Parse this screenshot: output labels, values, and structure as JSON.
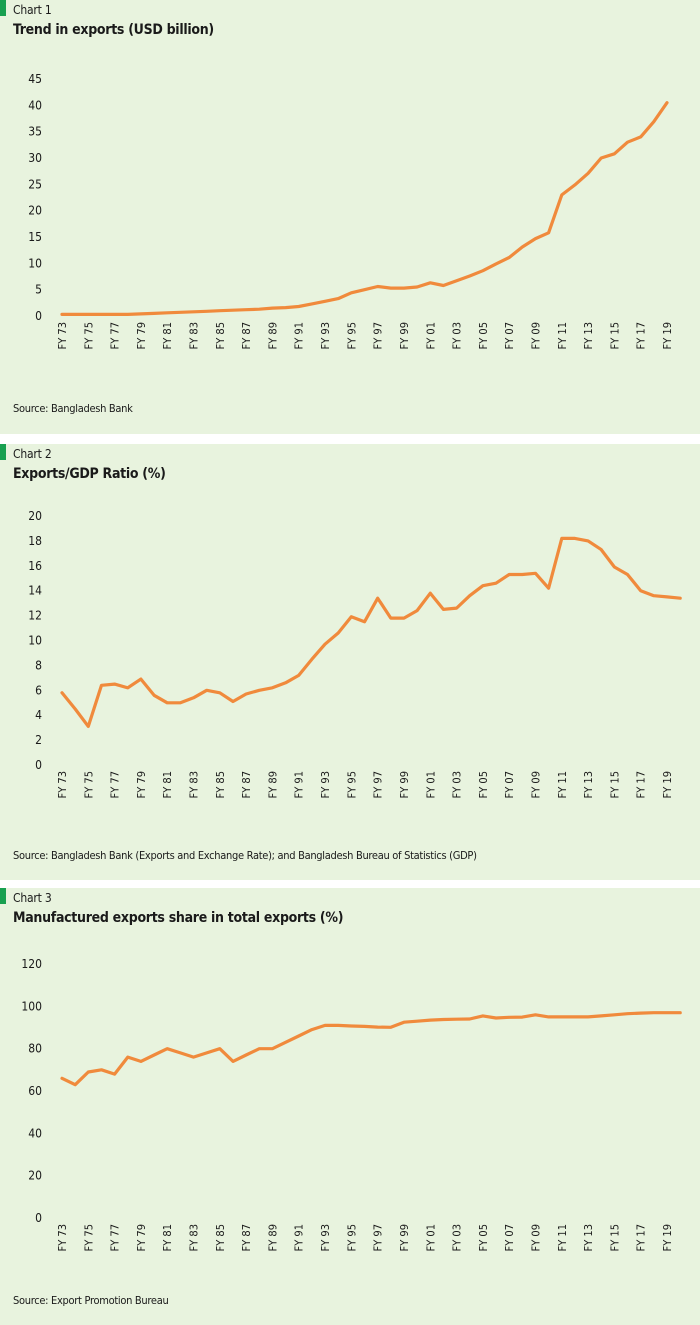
{
  "colors": {
    "panel_bg": "#e8f3de",
    "line": "#f08a3c",
    "marker": "#18a050",
    "grid": "#ffffff"
  },
  "chart_data": [
    {
      "type": "line",
      "label": "Chart 1",
      "title": "Trend in exports (USD billion)",
      "source": "Source: Bangladesh Bank",
      "ylim": [
        0,
        45
      ],
      "yticks": [
        0,
        5,
        10,
        15,
        20,
        25,
        30,
        35,
        40,
        45
      ],
      "xtick_labels": [
        "FY 73",
        "FY 75",
        "FY 77",
        "FY 79",
        "FY 81",
        "FY 83",
        "FY 85",
        "FY 87",
        "FY 89",
        "FY 91",
        "FY 93",
        "FY 95",
        "FY 97",
        "FY 99",
        "FY 01",
        "FY 03",
        "FY 05",
        "FY 07",
        "FY 09",
        "FY 11",
        "FY 13",
        "FY 15",
        "FY 17",
        "FY 19"
      ],
      "x": [
        "FY 73",
        "FY 74",
        "FY 75",
        "FY 76",
        "FY 77",
        "FY 78",
        "FY 79",
        "FY 80",
        "FY 81",
        "FY 82",
        "FY 83",
        "FY 84",
        "FY 85",
        "FY 86",
        "FY 87",
        "FY 88",
        "FY 89",
        "FY 90",
        "FY 91",
        "FY 92",
        "FY 93",
        "FY 94",
        "FY 95",
        "FY 96",
        "FY 97",
        "FY 98",
        "FY 99",
        "FY 00",
        "FY 01",
        "FY 02",
        "FY 03",
        "FY 04",
        "FY 05",
        "FY 06",
        "FY 07",
        "FY 08",
        "FY 09",
        "FY 10",
        "FY 11",
        "FY 12",
        "FY 13",
        "FY 14",
        "FY 15",
        "FY 16",
        "FY 17",
        "FY 18",
        "FY 19"
      ],
      "values": [
        0.3,
        0.3,
        0.3,
        0.3,
        0.3,
        0.3,
        0.4,
        0.5,
        0.6,
        0.7,
        0.8,
        0.9,
        1.0,
        1.1,
        1.2,
        1.3,
        1.5,
        1.6,
        1.8,
        2.3,
        2.8,
        3.3,
        4.4,
        5.0,
        5.6,
        5.3,
        5.3,
        5.5,
        6.3,
        5.8,
        6.7,
        7.6,
        8.6,
        9.9,
        11.1,
        13.1,
        14.7,
        15.8,
        23.0,
        24.9,
        27.1,
        30.0,
        30.8,
        33.0,
        34.0,
        36.9,
        40.5
      ],
      "grid": false,
      "legend": "none"
    },
    {
      "type": "line",
      "label": "Chart 2",
      "title": "Exports/GDP Ratio (%)",
      "source": "Source: Bangladesh Bank (Exports and Exchange Rate); and Bangladesh Bureau of Statistics (GDP)",
      "ylim": [
        0,
        20
      ],
      "yticks": [
        0,
        2,
        4,
        6,
        8,
        10,
        12,
        14,
        16,
        18,
        20
      ],
      "xtick_labels": [
        "FY 73",
        "FY 75",
        "FY 77",
        "FY 79",
        "FY 81",
        "FY 83",
        "FY 85",
        "FY 87",
        "FY 89",
        "FY 91",
        "FY 93",
        "FY 95",
        "FY 97",
        "FY 99",
        "FY 01",
        "FY 03",
        "FY 05",
        "FY 07",
        "FY 09",
        "FY 11",
        "FY 13",
        "FY 15",
        "FY 17",
        "FY 19"
      ],
      "x": [
        "FY 73",
        "FY 74",
        "FY 75",
        "FY 76",
        "FY 77",
        "FY 78",
        "FY 79",
        "FY 80",
        "FY 81",
        "FY 82",
        "FY 83",
        "FY 84",
        "FY 85",
        "FY 86",
        "FY 87",
        "FY 88",
        "FY 89",
        "FY 90",
        "FY 91",
        "FY 92",
        "FY 93",
        "FY 94",
        "FY 95",
        "FY 96",
        "FY 97",
        "FY 98",
        "FY 99",
        "FY 00",
        "FY 01",
        "FY 02",
        "FY 03",
        "FY 04",
        "FY 05",
        "FY 06",
        "FY 07",
        "FY 08",
        "FY 09",
        "FY 10",
        "FY 11",
        "FY 12",
        "FY 13",
        "FY 14",
        "FY 15",
        "FY 16",
        "FY 17",
        "FY 18",
        "FY 19",
        "FY 20"
      ],
      "values": [
        5.8,
        4.5,
        3.1,
        6.4,
        6.5,
        6.2,
        6.9,
        5.6,
        5.0,
        5.0,
        5.4,
        6.0,
        5.8,
        5.1,
        5.7,
        6.0,
        6.2,
        6.6,
        7.2,
        8.5,
        9.7,
        10.6,
        11.9,
        11.5,
        13.4,
        11.8,
        11.8,
        12.4,
        13.8,
        12.5,
        12.6,
        13.6,
        14.4,
        14.6,
        15.3,
        15.3,
        15.4,
        14.2,
        18.2,
        18.2,
        18.0,
        17.3,
        15.9,
        15.3,
        14.0,
        13.6,
        13.5,
        13.4
      ],
      "grid": false,
      "legend": "none"
    },
    {
      "type": "line",
      "label": "Chart 3",
      "title": "Manufactured exports share in total exports (%)",
      "source": "Source: Export Promotion Bureau",
      "ylim": [
        0,
        120
      ],
      "yticks": [
        0,
        20,
        40,
        60,
        80,
        100,
        120
      ],
      "xtick_labels": [
        "FY 73",
        "FY 75",
        "FY 77",
        "FY 79",
        "FY 81",
        "FY 83",
        "FY 85",
        "FY 87",
        "FY 89",
        "FY 91",
        "FY 93",
        "FY 95",
        "FY 97",
        "FY 99",
        "FY 01",
        "FY 03",
        "FY 05",
        "FY 07",
        "FY 09",
        "FY 11",
        "FY 13",
        "FY 15",
        "FY 17",
        "FY 19"
      ],
      "x": [
        "FY 73",
        "FY 74",
        "FY 75",
        "FY 76",
        "FY 77",
        "FY 78",
        "FY 79",
        "FY 80",
        "FY 81",
        "FY 82",
        "FY 83",
        "FY 84",
        "FY 85",
        "FY 86",
        "FY 87",
        "FY 88",
        "FY 89",
        "FY 90",
        "FY 91",
        "FY 92",
        "FY 93",
        "FY 94",
        "FY 95",
        "FY 96",
        "FY 97",
        "FY 98",
        "FY 99",
        "FY 00",
        "FY 01",
        "FY 02",
        "FY 03",
        "FY 04",
        "FY 05",
        "FY 06",
        "FY 07",
        "FY 08",
        "FY 09",
        "FY 10",
        "FY 11",
        "FY 12",
        "FY 13",
        "FY 14",
        "FY 15",
        "FY 16",
        "FY 17",
        "FY 18",
        "FY 19",
        "FY 20"
      ],
      "values": [
        66,
        63,
        69,
        70,
        68,
        76,
        74,
        77,
        80,
        78,
        76,
        78,
        80,
        74,
        77,
        80,
        80,
        83,
        86,
        89,
        91,
        91,
        90.7,
        90.5,
        90.2,
        90.1,
        92.5,
        93,
        93.5,
        93.8,
        93.9,
        94,
        95.5,
        94.5,
        94.8,
        94.9,
        96,
        95,
        95,
        95,
        95,
        95.5,
        96,
        96.5,
        96.8,
        97,
        97,
        97
      ],
      "grid": false,
      "legend": "none"
    }
  ]
}
